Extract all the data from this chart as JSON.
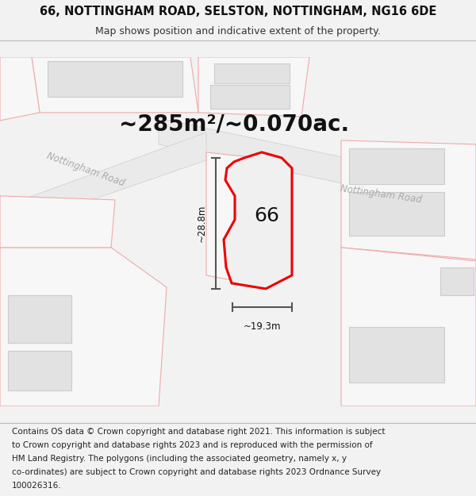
{
  "title": "66, NOTTINGHAM ROAD, SELSTON, NOTTINGHAM, NG16 6DE",
  "subtitle": "Map shows position and indicative extent of the property.",
  "area_text": "~285m²/~0.070ac.",
  "width_label": "~19.3m",
  "height_label": "~28.8m",
  "property_number": "66",
  "footer_lines": [
    "Contains OS data © Crown copyright and database right 2021. This information is subject",
    "to Crown copyright and database rights 2023 and is reproduced with the permission of",
    "HM Land Registry. The polygons (including the associated geometry, namely x, y",
    "co-ordinates) are subject to Crown copyright and database rights 2023 Ordnance Survey",
    "100026316."
  ],
  "bg_color": "#f2f2f2",
  "map_bg": "#ffffff",
  "plot_fill": "#f7f7f7",
  "plot_edge": "#f0aaaa",
  "bldg_fill": "#e2e2e2",
  "bldg_edge": "#cccccc",
  "road_fill": "#eaeaea",
  "road_edge": "#cccccc",
  "prop_fill": "#f0f0f0",
  "prop_edge": "#ee0000",
  "dim_color": "#555555",
  "road_label_color": "#aaaaaa",
  "text_color": "#111111",
  "title_fontsize": 10.5,
  "subtitle_fontsize": 9,
  "area_fontsize": 20,
  "label_fontsize": 8.5,
  "number_fontsize": 18,
  "footer_fontsize": 7.5
}
